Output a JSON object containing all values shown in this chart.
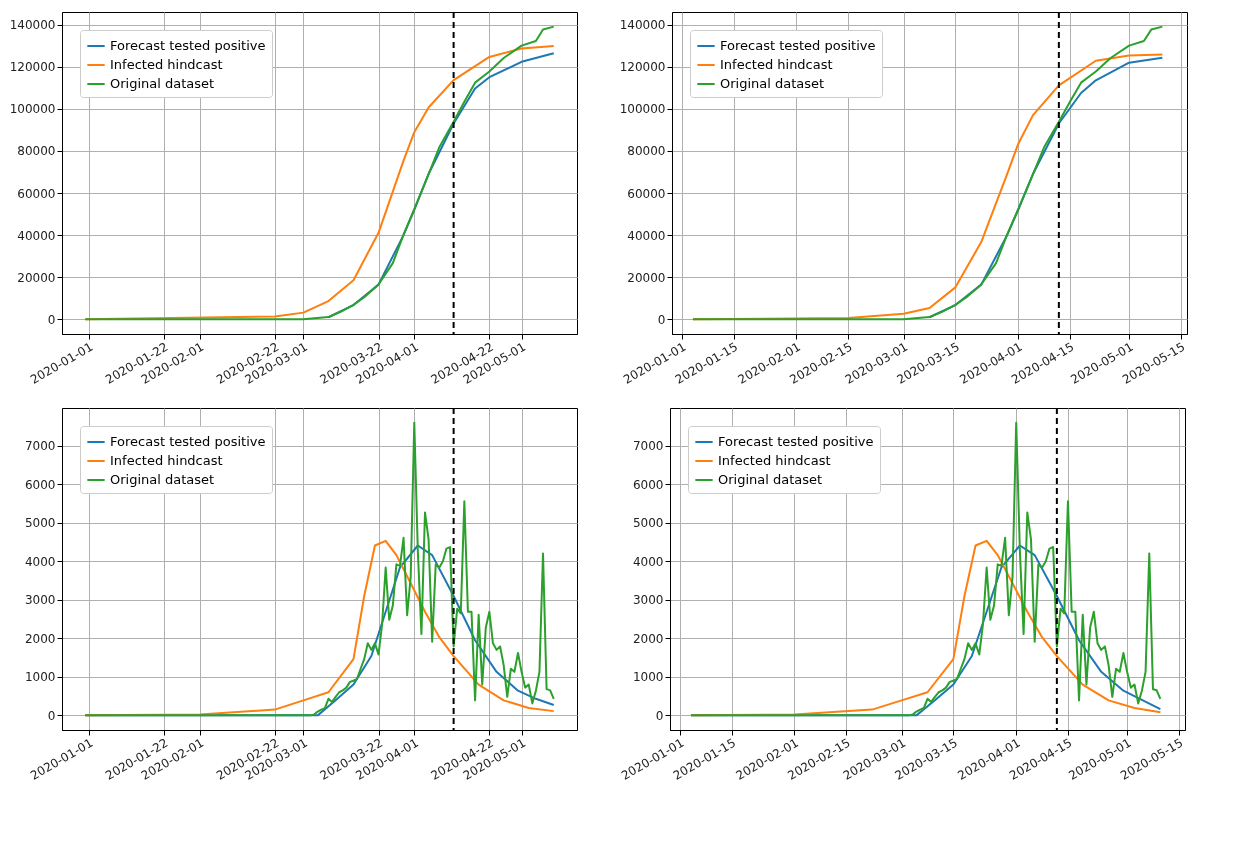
{
  "chart_data": [
    {
      "type": "line",
      "xlim": [
        "2019-12-24T12:00",
        "2020-05-16T12:00"
      ],
      "ylim": [
        -6950,
        145950
      ],
      "xticks": [
        "2020-01-01",
        "2020-01-22",
        "2020-02-01",
        "2020-02-22",
        "2020-03-01",
        "2020-03-22",
        "2020-04-01",
        "2020-04-22",
        "2020-05-01"
      ],
      "yticks": [
        0,
        20000,
        40000,
        60000,
        80000,
        100000,
        120000,
        140000
      ],
      "grid": true,
      "legend": "top left",
      "ref_lines": [
        {
          "axis": "x",
          "value": "2020-04-12",
          "color": "#000000",
          "line_style": "dashed"
        }
      ],
      "series": [
        {
          "name": "Forecast tested positive",
          "color": "#1f77b4",
          "x": [
            "2020-03-08",
            "2020-03-15",
            "2020-03-22",
            "2020-03-29",
            "2020-04-01",
            "2020-04-05",
            "2020-04-12",
            "2020-04-18",
            "2020-04-22",
            "2020-05-01",
            "2020-05-10"
          ],
          "values": [
            1000,
            6800,
            16500,
            40000,
            52000,
            69000,
            93000,
            109600,
            115000,
            122300,
            126400
          ]
        },
        {
          "name": "Infected hindcast",
          "color": "#ff7f0e",
          "x": [
            "2019-12-31",
            "2020-02-22",
            "2020-03-01",
            "2020-03-08",
            "2020-03-15",
            "2020-03-22",
            "2020-03-29",
            "2020-04-01",
            "2020-04-05",
            "2020-04-12",
            "2020-04-22",
            "2020-05-01",
            "2020-05-10"
          ],
          "values": [
            0,
            1400,
            3200,
            8700,
            18600,
            41100,
            75400,
            88900,
            100600,
            113600,
            124600,
            128600,
            129800
          ]
        },
        {
          "name": "Original dataset",
          "color": "#2ca02c",
          "x": [
            "2019-12-31",
            "2020-03-01",
            "2020-03-08",
            "2020-03-12",
            "2020-03-15",
            "2020-03-18",
            "2020-03-22",
            "2020-03-26",
            "2020-03-29",
            "2020-04-01",
            "2020-04-05",
            "2020-04-08",
            "2020-04-12",
            "2020-04-15",
            "2020-04-18",
            "2020-04-22",
            "2020-04-26",
            "2020-05-01",
            "2020-05-05",
            "2020-05-07",
            "2020-05-10"
          ],
          "values": [
            0,
            0,
            1100,
            4100,
            6900,
            10500,
            16600,
            26700,
            40200,
            52300,
            69000,
            81700,
            93800,
            103300,
            112400,
            117700,
            124100,
            130000,
            132200,
            137600,
            139000
          ]
        }
      ]
    },
    {
      "type": "line",
      "xlim": [
        "2019-12-29T08:00",
        "2020-05-16T16:00"
      ],
      "ylim": [
        -6950,
        145950
      ],
      "xticks": [
        "2020-01-01",
        "2020-01-15",
        "2020-02-01",
        "2020-02-15",
        "2020-03-01",
        "2020-03-15",
        "2020-04-01",
        "2020-04-15",
        "2020-05-01",
        "2020-05-15"
      ],
      "yticks": [
        0,
        20000,
        40000,
        60000,
        80000,
        100000,
        120000,
        140000
      ],
      "grid": true,
      "legend": "top left",
      "ref_lines": [
        {
          "axis": "x",
          "value": "2020-04-12",
          "color": "#000000",
          "line_style": "dashed"
        }
      ],
      "series": [
        {
          "name": "Forecast tested positive",
          "color": "#1f77b4",
          "x": [
            "2020-03-08",
            "2020-03-15",
            "2020-03-22",
            "2020-03-29",
            "2020-04-01",
            "2020-04-05",
            "2020-04-12",
            "2020-04-18",
            "2020-04-22",
            "2020-05-01",
            "2020-05-10"
          ],
          "values": [
            1000,
            6800,
            16500,
            40000,
            52000,
            69000,
            93000,
            107500,
            113500,
            121900,
            124200
          ]
        },
        {
          "name": "Infected hindcast",
          "color": "#ff7f0e",
          "x": [
            "2020-01-04",
            "2020-02-15",
            "2020-03-01",
            "2020-03-08",
            "2020-03-15",
            "2020-03-22",
            "2020-03-29",
            "2020-04-01",
            "2020-04-05",
            "2020-04-12",
            "2020-04-22",
            "2020-05-01",
            "2020-05-10"
          ],
          "values": [
            0,
            700,
            2700,
            5400,
            15200,
            36700,
            69000,
            83300,
            97000,
            111100,
            122800,
            125300,
            125800
          ]
        },
        {
          "name": "Original dataset",
          "color": "#2ca02c",
          "x": [
            "2020-01-04",
            "2020-03-01",
            "2020-03-08",
            "2020-03-12",
            "2020-03-15",
            "2020-03-18",
            "2020-03-22",
            "2020-03-26",
            "2020-03-29",
            "2020-04-01",
            "2020-04-05",
            "2020-04-08",
            "2020-04-12",
            "2020-04-15",
            "2020-04-18",
            "2020-04-22",
            "2020-04-26",
            "2020-05-01",
            "2020-05-05",
            "2020-05-07",
            "2020-05-10"
          ],
          "values": [
            0,
            0,
            1100,
            4100,
            6900,
            10500,
            16600,
            26700,
            40200,
            52300,
            69000,
            81700,
            93800,
            103300,
            112400,
            117700,
            124100,
            130000,
            132200,
            137600,
            139000
          ]
        }
      ]
    },
    {
      "type": "line",
      "xlim": [
        "2019-12-24T12:00",
        "2020-05-16T12:00"
      ],
      "ylim": [
        -380,
        7980
      ],
      "xticks": [
        "2020-01-01",
        "2020-01-22",
        "2020-02-01",
        "2020-02-22",
        "2020-03-01",
        "2020-03-22",
        "2020-04-01",
        "2020-04-22",
        "2020-05-01"
      ],
      "yticks": [
        0,
        1000,
        2000,
        3000,
        4000,
        5000,
        6000,
        7000
      ],
      "grid": true,
      "legend": "top left",
      "ref_lines": [
        {
          "axis": "x",
          "value": "2020-04-12",
          "color": "#000000",
          "line_style": "dashed"
        }
      ],
      "series": [
        {
          "name": "Forecast tested positive",
          "color": "#1f77b4",
          "x": [
            "2019-12-31",
            "2020-03-05",
            "2020-03-10",
            "2020-03-15",
            "2020-03-20",
            "2020-03-24",
            "2020-03-28",
            "2020-04-02",
            "2020-04-06",
            "2020-04-12",
            "2020-04-18",
            "2020-04-24",
            "2020-04-30",
            "2020-05-05",
            "2020-05-10"
          ],
          "values": [
            0,
            0,
            390,
            800,
            1540,
            2690,
            3840,
            4410,
            4160,
            3100,
            1950,
            1130,
            640,
            430,
            270
          ]
        },
        {
          "name": "Infected hindcast",
          "color": "#ff7f0e",
          "x": [
            "2019-12-31",
            "2020-02-01",
            "2020-02-22",
            "2020-03-01",
            "2020-03-08",
            "2020-03-15",
            "2020-03-18",
            "2020-03-21",
            "2020-03-24",
            "2020-03-27",
            "2020-03-31",
            "2020-04-04",
            "2020-04-08",
            "2020-04-12",
            "2020-04-19",
            "2020-04-26",
            "2020-05-03",
            "2020-05-10"
          ],
          "values": [
            0,
            20,
            150,
            390,
            600,
            1460,
            3100,
            4410,
            4530,
            4160,
            3430,
            2690,
            2030,
            1540,
            800,
            390,
            190,
            110
          ]
        },
        {
          "name": "Original dataset",
          "color": "#2ca02c",
          "x": [
            "2019-12-31",
            "2020-03-03",
            "2020-03-04",
            "2020-03-05",
            "2020-03-06",
            "2020-03-07",
            "2020-03-08",
            "2020-03-09",
            "2020-03-10",
            "2020-03-11",
            "2020-03-12",
            "2020-03-13",
            "2020-03-14",
            "2020-03-15",
            "2020-03-16",
            "2020-03-17",
            "2020-03-18",
            "2020-03-19",
            "2020-03-20",
            "2020-03-21",
            "2020-03-22",
            "2020-03-23",
            "2020-03-24",
            "2020-03-25",
            "2020-03-26",
            "2020-03-27",
            "2020-03-28",
            "2020-03-29",
            "2020-03-30",
            "2020-03-31",
            "2020-04-01",
            "2020-04-02",
            "2020-04-03",
            "2020-04-04",
            "2020-04-05",
            "2020-04-06",
            "2020-04-07",
            "2020-04-08",
            "2020-04-09",
            "2020-04-10",
            "2020-04-11",
            "2020-04-12",
            "2020-04-13",
            "2020-04-14",
            "2020-04-15",
            "2020-04-16",
            "2020-04-17",
            "2020-04-18",
            "2020-04-19",
            "2020-04-20",
            "2020-04-21",
            "2020-04-22",
            "2020-04-23",
            "2020-04-24",
            "2020-04-25",
            "2020-04-26",
            "2020-04-27",
            "2020-04-28",
            "2020-04-29",
            "2020-04-30",
            "2020-05-01",
            "2020-05-02",
            "2020-05-03",
            "2020-05-04",
            "2020-05-05",
            "2020-05-06",
            "2020-05-07",
            "2020-05-08",
            "2020-05-09",
            "2020-05-10"
          ],
          "values": [
            0,
            0,
            20,
            100,
            150,
            190,
            430,
            350,
            480,
            600,
            650,
            720,
            870,
            900,
            950,
            1210,
            1460,
            1870,
            1700,
            1870,
            1580,
            2360,
            3840,
            2480,
            2850,
            3920,
            3880,
            4610,
            2600,
            3590,
            7600,
            4250,
            2110,
            5270,
            4570,
            1910,
            3920,
            3840,
            4000,
            4330,
            4370,
            1790,
            2770,
            2650,
            5560,
            2690,
            2690,
            390,
            2610,
            800,
            2280,
            2690,
            1870,
            1700,
            1790,
            1300,
            480,
            1210,
            1130,
            1620,
            1130,
            720,
            800,
            310,
            640,
            1130,
            4200,
            680,
            650,
            430
          ]
        }
      ]
    },
    {
      "type": "line",
      "xlim": [
        "2019-12-29T08:00",
        "2020-05-16T16:00"
      ],
      "ylim": [
        -380,
        7980
      ],
      "xticks": [
        "2020-01-01",
        "2020-01-15",
        "2020-02-01",
        "2020-02-15",
        "2020-03-01",
        "2020-03-15",
        "2020-04-01",
        "2020-04-15",
        "2020-05-01",
        "2020-05-15"
      ],
      "yticks": [
        0,
        1000,
        2000,
        3000,
        4000,
        5000,
        6000,
        7000
      ],
      "grid": true,
      "legend": "top left",
      "ref_lines": [
        {
          "axis": "x",
          "value": "2020-04-12",
          "color": "#000000",
          "line_style": "dashed"
        }
      ],
      "series": [
        {
          "name": "Forecast tested positive",
          "color": "#1f77b4",
          "x": [
            "2020-01-04",
            "2020-03-05",
            "2020-03-10",
            "2020-03-15",
            "2020-03-20",
            "2020-03-24",
            "2020-03-28",
            "2020-04-02",
            "2020-04-06",
            "2020-04-12",
            "2020-04-18",
            "2020-04-24",
            "2020-04-30",
            "2020-05-05",
            "2020-05-10"
          ],
          "values": [
            0,
            0,
            390,
            800,
            1540,
            2690,
            3840,
            4410,
            4160,
            3100,
            1950,
            1130,
            640,
            400,
            160
          ]
        },
        {
          "name": "Infected hindcast",
          "color": "#ff7f0e",
          "x": [
            "2020-01-04",
            "2020-02-01",
            "2020-02-22",
            "2020-03-01",
            "2020-03-08",
            "2020-03-15",
            "2020-03-18",
            "2020-03-21",
            "2020-03-24",
            "2020-03-27",
            "2020-03-31",
            "2020-04-04",
            "2020-04-08",
            "2020-04-12",
            "2020-04-19",
            "2020-04-26",
            "2020-05-03",
            "2020-05-10"
          ],
          "values": [
            0,
            20,
            150,
            390,
            600,
            1460,
            3100,
            4410,
            4530,
            4160,
            3430,
            2690,
            2030,
            1540,
            800,
            390,
            190,
            80
          ]
        },
        {
          "name": "Original dataset",
          "color": "#2ca02c",
          "x": [
            "2020-01-04",
            "2020-03-03",
            "2020-03-04",
            "2020-03-05",
            "2020-03-06",
            "2020-03-07",
            "2020-03-08",
            "2020-03-09",
            "2020-03-10",
            "2020-03-11",
            "2020-03-12",
            "2020-03-13",
            "2020-03-14",
            "2020-03-15",
            "2020-03-16",
            "2020-03-17",
            "2020-03-18",
            "2020-03-19",
            "2020-03-20",
            "2020-03-21",
            "2020-03-22",
            "2020-03-23",
            "2020-03-24",
            "2020-03-25",
            "2020-03-26",
            "2020-03-27",
            "2020-03-28",
            "2020-03-29",
            "2020-03-30",
            "2020-03-31",
            "2020-04-01",
            "2020-04-02",
            "2020-04-03",
            "2020-04-04",
            "2020-04-05",
            "2020-04-06",
            "2020-04-07",
            "2020-04-08",
            "2020-04-09",
            "2020-04-10",
            "2020-04-11",
            "2020-04-12",
            "2020-04-13",
            "2020-04-14",
            "2020-04-15",
            "2020-04-16",
            "2020-04-17",
            "2020-04-18",
            "2020-04-19",
            "2020-04-20",
            "2020-04-21",
            "2020-04-22",
            "2020-04-23",
            "2020-04-24",
            "2020-04-25",
            "2020-04-26",
            "2020-04-27",
            "2020-04-28",
            "2020-04-29",
            "2020-04-30",
            "2020-05-01",
            "2020-05-02",
            "2020-05-03",
            "2020-05-04",
            "2020-05-05",
            "2020-05-06",
            "2020-05-07",
            "2020-05-08",
            "2020-05-09",
            "2020-05-10"
          ],
          "values": [
            0,
            0,
            20,
            100,
            150,
            190,
            430,
            350,
            480,
            600,
            650,
            720,
            870,
            900,
            950,
            1210,
            1460,
            1870,
            1700,
            1870,
            1580,
            2360,
            3840,
            2480,
            2850,
            3920,
            3880,
            4610,
            2600,
            3590,
            7600,
            4250,
            2110,
            5270,
            4570,
            1910,
            3920,
            3840,
            4000,
            4330,
            4370,
            1790,
            2770,
            2650,
            5560,
            2690,
            2690,
            390,
            2610,
            800,
            2280,
            2690,
            1870,
            1700,
            1790,
            1300,
            480,
            1210,
            1130,
            1620,
            1130,
            720,
            800,
            310,
            640,
            1130,
            4200,
            680,
            650,
            430
          ]
        }
      ]
    }
  ]
}
